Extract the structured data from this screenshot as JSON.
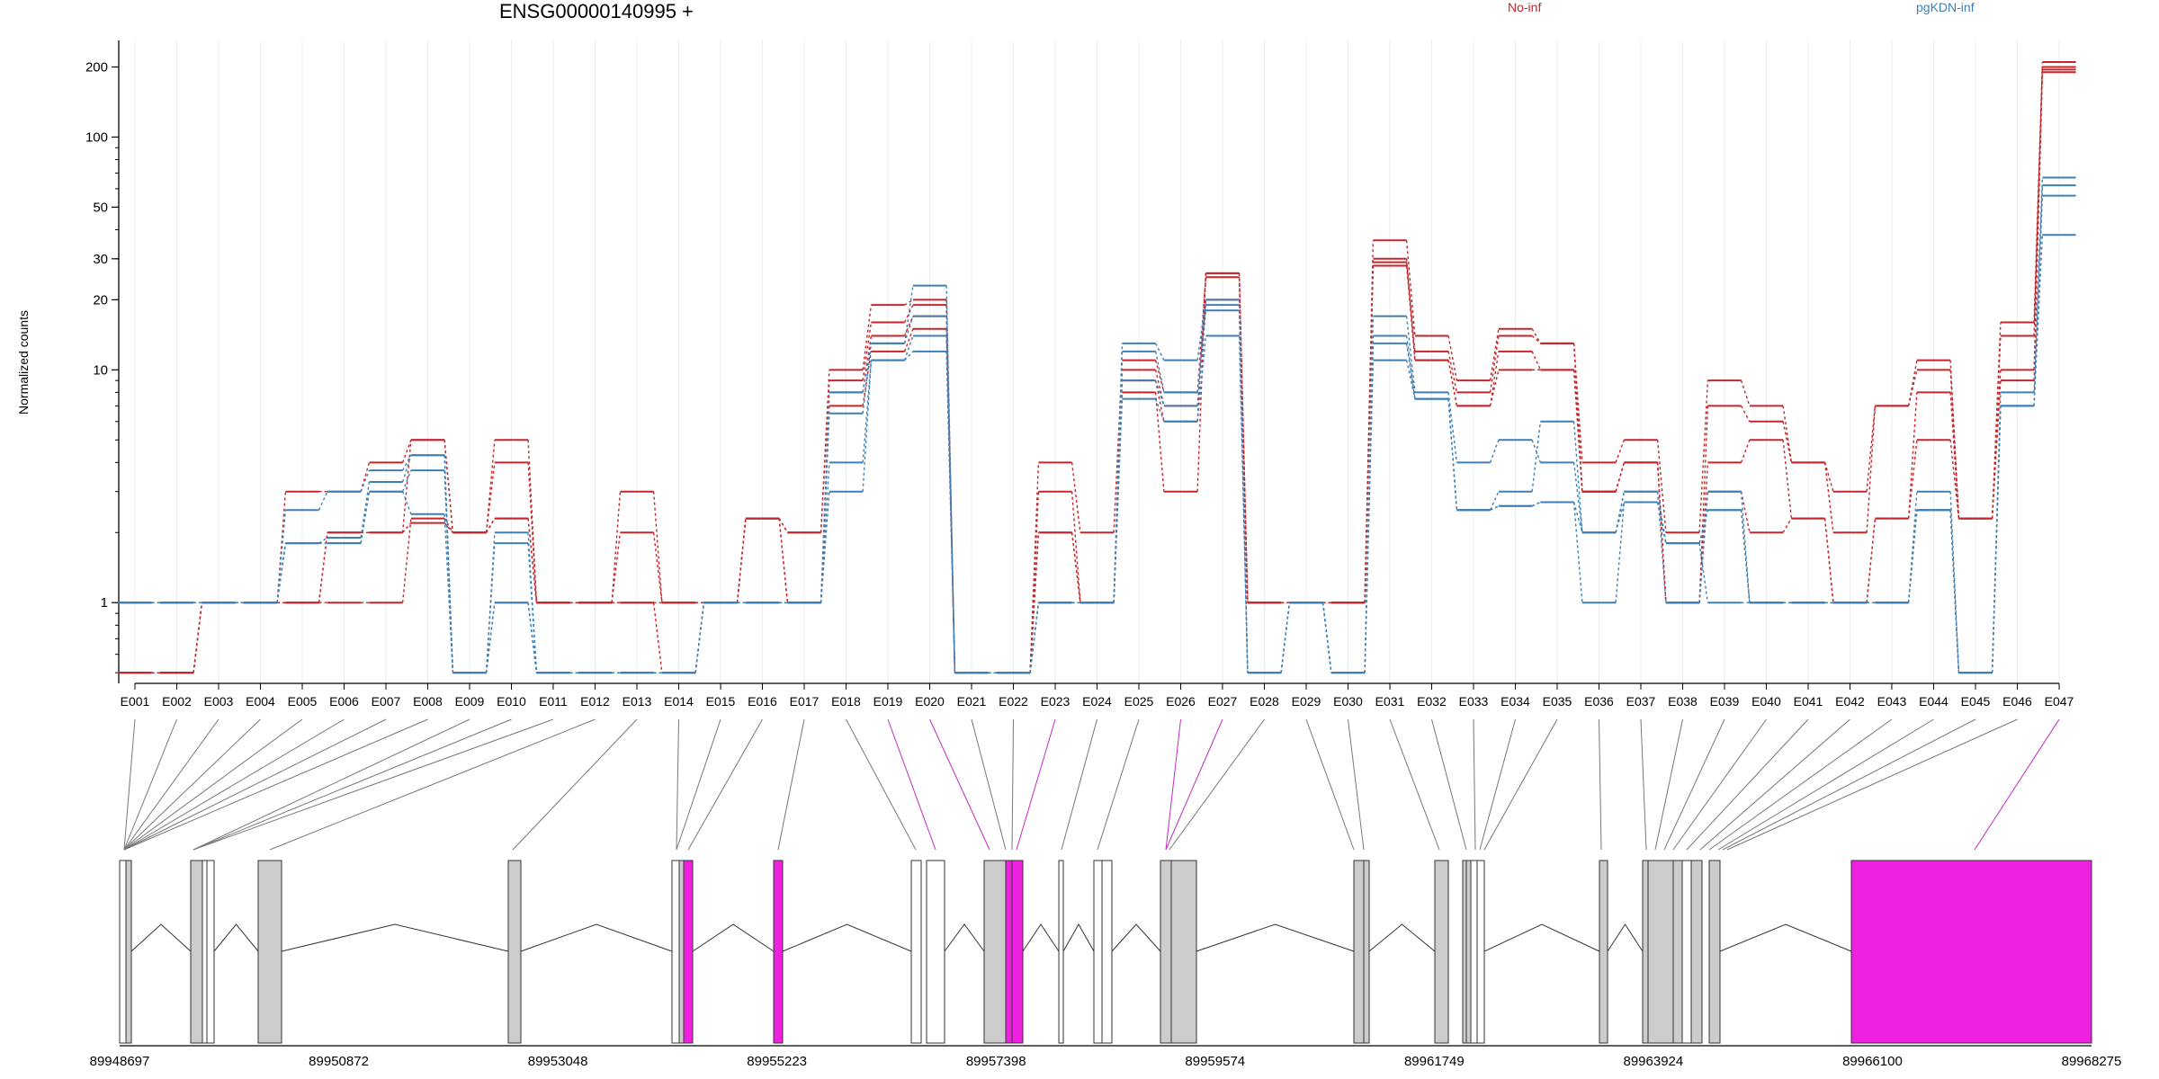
{
  "chart_data": {
    "type": "line",
    "title": "ENSG00000140995 +",
    "ylabel": "Normalized counts",
    "xlabel": "",
    "y_scale": "log",
    "yticks": [
      1,
      10,
      20,
      30,
      50,
      100,
      200
    ],
    "ylim": [
      0.45,
      260
    ],
    "grid": "vertical",
    "legend": [
      {
        "name": "No-inf",
        "color": "#c3262b",
        "position": "top"
      },
      {
        "name": "pgKDN-inf",
        "color": "#3f7fb4",
        "position": "top-right"
      }
    ],
    "categories": [
      "E001",
      "E002",
      "E003",
      "E004",
      "E005",
      "E006",
      "E007",
      "E008",
      "E009",
      "E010",
      "E011",
      "E012",
      "E013",
      "E014",
      "E015",
      "E016",
      "E017",
      "E018",
      "E019",
      "E020",
      "E021",
      "E022",
      "E023",
      "E024",
      "E025",
      "E026",
      "E027",
      "E028",
      "E029",
      "E030",
      "E031",
      "E032",
      "E033",
      "E034",
      "E035",
      "E036",
      "E037",
      "E038",
      "E039",
      "E040",
      "E041",
      "E042",
      "E043",
      "E044",
      "E045",
      "E046",
      "E047"
    ],
    "zero_floor_value": 0.5,
    "series": [
      {
        "group": "No-inf",
        "color": "#c3262b",
        "values": [
          0.5,
          0.5,
          1,
          1,
          3,
          3,
          4,
          5,
          2,
          5,
          1,
          1,
          3,
          1,
          1,
          2.3,
          2,
          10,
          19,
          20,
          0.5,
          0.5,
          4,
          2,
          11,
          8,
          25,
          1,
          1,
          1,
          36,
          14,
          9,
          15,
          13,
          4,
          5,
          2,
          9,
          7,
          4,
          3,
          7,
          11,
          2.3,
          16,
          210
        ]
      },
      {
        "group": "No-inf",
        "color": "#c3262b",
        "values": [
          0.5,
          0.5,
          1,
          1,
          1,
          2,
          2,
          5,
          2,
          4,
          1,
          1,
          2,
          1,
          1,
          2.3,
          2,
          9,
          16,
          19,
          0.5,
          0.5,
          3,
          1,
          10,
          7,
          20,
          1,
          1,
          1,
          29,
          12,
          8,
          14,
          13,
          3,
          4,
          1,
          7,
          6,
          4,
          2,
          7,
          10,
          2.3,
          14,
          200
        ]
      },
      {
        "group": "No-inf",
        "color": "#c3262b",
        "values": [
          0.5,
          0.5,
          1,
          1,
          1,
          2,
          2,
          2.2,
          2,
          2.3,
          1,
          1,
          1,
          1,
          1,
          2.3,
          1,
          8,
          14,
          17,
          0.5,
          0.5,
          2,
          1,
          9,
          6,
          26,
          1,
          1,
          1,
          28,
          11,
          7,
          12,
          10,
          3,
          4,
          1,
          4,
          5,
          2.3,
          1,
          2.3,
          5,
          2.3,
          10,
          195
        ]
      },
      {
        "group": "No-inf",
        "color": "#c3262b",
        "values": [
          0.5,
          0.5,
          1,
          1,
          1,
          1,
          1,
          2.3,
          2,
          2.3,
          1,
          1,
          1,
          0.5,
          1,
          2.3,
          1,
          7,
          12,
          15,
          0.5,
          0.5,
          2,
          1,
          8,
          3,
          26,
          1,
          1,
          1,
          30,
          11,
          7,
          10,
          10,
          3,
          4,
          1,
          3,
          2,
          2.3,
          1,
          2.3,
          8,
          2.3,
          9,
          190
        ]
      },
      {
        "group": "pgKDN-inf",
        "color": "#3f7fb4",
        "values": [
          1,
          1,
          1,
          1,
          2.5,
          3,
          3.7,
          4.3,
          0.5,
          2,
          0.5,
          0.5,
          0.5,
          0.5,
          1,
          1,
          1,
          8,
          13,
          23,
          0.5,
          0.5,
          1,
          1,
          13,
          11,
          20,
          0.5,
          1,
          0.5,
          17,
          8,
          4,
          5,
          4,
          2,
          3,
          1,
          3,
          1,
          1,
          1,
          1,
          3,
          0.5,
          8,
          67
        ]
      },
      {
        "group": "pgKDN-inf",
        "color": "#3f7fb4",
        "values": [
          1,
          1,
          1,
          1,
          1.8,
          1.9,
          3.3,
          4.3,
          0.5,
          1.8,
          0.5,
          0.5,
          0.5,
          0.5,
          1,
          1,
          1,
          6.5,
          13,
          17,
          0.5,
          0.5,
          1,
          1,
          12,
          8,
          19,
          0.5,
          1,
          0.5,
          13,
          7.5,
          2.5,
          3,
          6,
          2,
          3,
          1.8,
          2.5,
          1,
          1,
          1,
          1,
          2.5,
          0.5,
          7,
          62
        ]
      },
      {
        "group": "pgKDN-inf",
        "color": "#3f7fb4",
        "values": [
          1,
          1,
          1,
          1,
          1.8,
          1.8,
          3,
          3.7,
          0.5,
          1,
          0.5,
          0.5,
          0.5,
          0.5,
          1,
          1,
          1,
          4,
          11,
          14,
          0.5,
          0.5,
          1,
          1,
          9,
          7,
          18,
          0.5,
          1,
          0.5,
          14,
          7.5,
          2.5,
          2.6,
          2.7,
          2,
          2.7,
          1.8,
          2.5,
          1,
          1,
          1,
          1,
          2.5,
          0.5,
          7,
          56
        ]
      },
      {
        "group": "pgKDN-inf",
        "color": "#3f7fb4",
        "values": [
          1,
          1,
          1,
          1,
          1.8,
          1.8,
          3,
          2.4,
          0.5,
          1,
          0.5,
          0.5,
          0.5,
          0.5,
          1,
          1,
          1,
          3,
          11,
          12,
          0.5,
          0.5,
          1,
          1,
          7.5,
          6,
          14,
          0.5,
          1,
          0.5,
          11,
          7.5,
          2.5,
          2.6,
          2.7,
          1,
          2.7,
          1.8,
          1,
          1,
          1,
          1,
          1,
          2.5,
          0.5,
          7,
          38
        ]
      }
    ],
    "highlighted_exons": [
      "E019",
      "E020",
      "E023",
      "E026",
      "E027",
      "E047"
    ],
    "genomic_axis_ticks": [
      "89948697",
      "89950872",
      "89953048",
      "89955223",
      "89957398",
      "89959574",
      "89961749",
      "89963924",
      "89966100",
      "89968275"
    ]
  }
}
